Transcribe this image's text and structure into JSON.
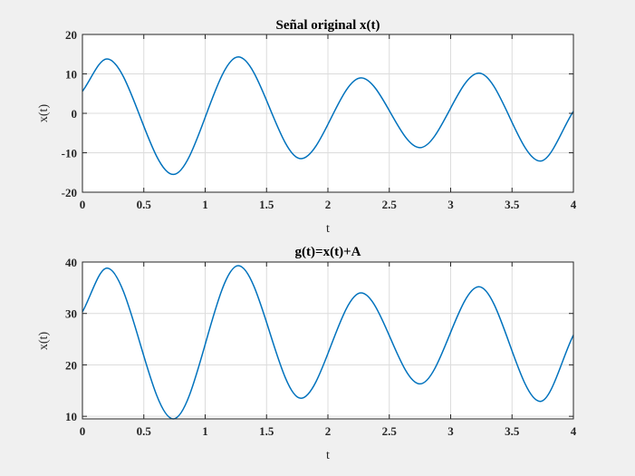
{
  "chart_data": [
    {
      "type": "line",
      "title": "Señal original x(t)",
      "xlabel": "t",
      "ylabel": "x(t)",
      "xlim": [
        0,
        4
      ],
      "ylim": [
        -20,
        20
      ],
      "xticks": [
        "0",
        "0.5",
        "1",
        "1.5",
        "2",
        "2.5",
        "3",
        "3.5",
        "4"
      ],
      "yticks": [
        "-20",
        "-10",
        "0",
        "10",
        "20"
      ],
      "grid": true,
      "legend": "none",
      "series": [
        {
          "color": "#0072bd",
          "points": [
            [
              0,
              5.6
            ],
            [
              0.2,
              13.8
            ],
            [
              0.74,
              -15.5
            ],
            [
              1.27,
              14.3
            ],
            [
              1.78,
              -11.5
            ],
            [
              2.27,
              9.0
            ],
            [
              2.75,
              -8.7
            ],
            [
              3.23,
              10.2
            ],
            [
              3.73,
              -12.1
            ],
            [
              4,
              0.5
            ]
          ]
        }
      ]
    },
    {
      "type": "line",
      "title": "g(t)=x(t)+A",
      "xlabel": "t",
      "ylabel": "x(t)",
      "xlim": [
        0,
        4
      ],
      "ylim": [
        9.5,
        40
      ],
      "xticks": [
        "0",
        "0.5",
        "1",
        "1.5",
        "2",
        "2.5",
        "3",
        "3.5",
        "4"
      ],
      "yticks": [
        "10",
        "20",
        "30",
        "40"
      ],
      "grid": true,
      "legend": "none",
      "series": [
        {
          "color": "#0072bd",
          "points": [
            [
              0,
              30.3
            ],
            [
              0.2,
              38.8
            ],
            [
              0.74,
              9.5
            ],
            [
              1.27,
              39.3
            ],
            [
              1.78,
              13.5
            ],
            [
              2.27,
              34.0
            ],
            [
              2.75,
              16.3
            ],
            [
              3.23,
              35.2
            ],
            [
              3.73,
              12.9
            ],
            [
              4,
              25.8
            ]
          ]
        }
      ]
    }
  ]
}
